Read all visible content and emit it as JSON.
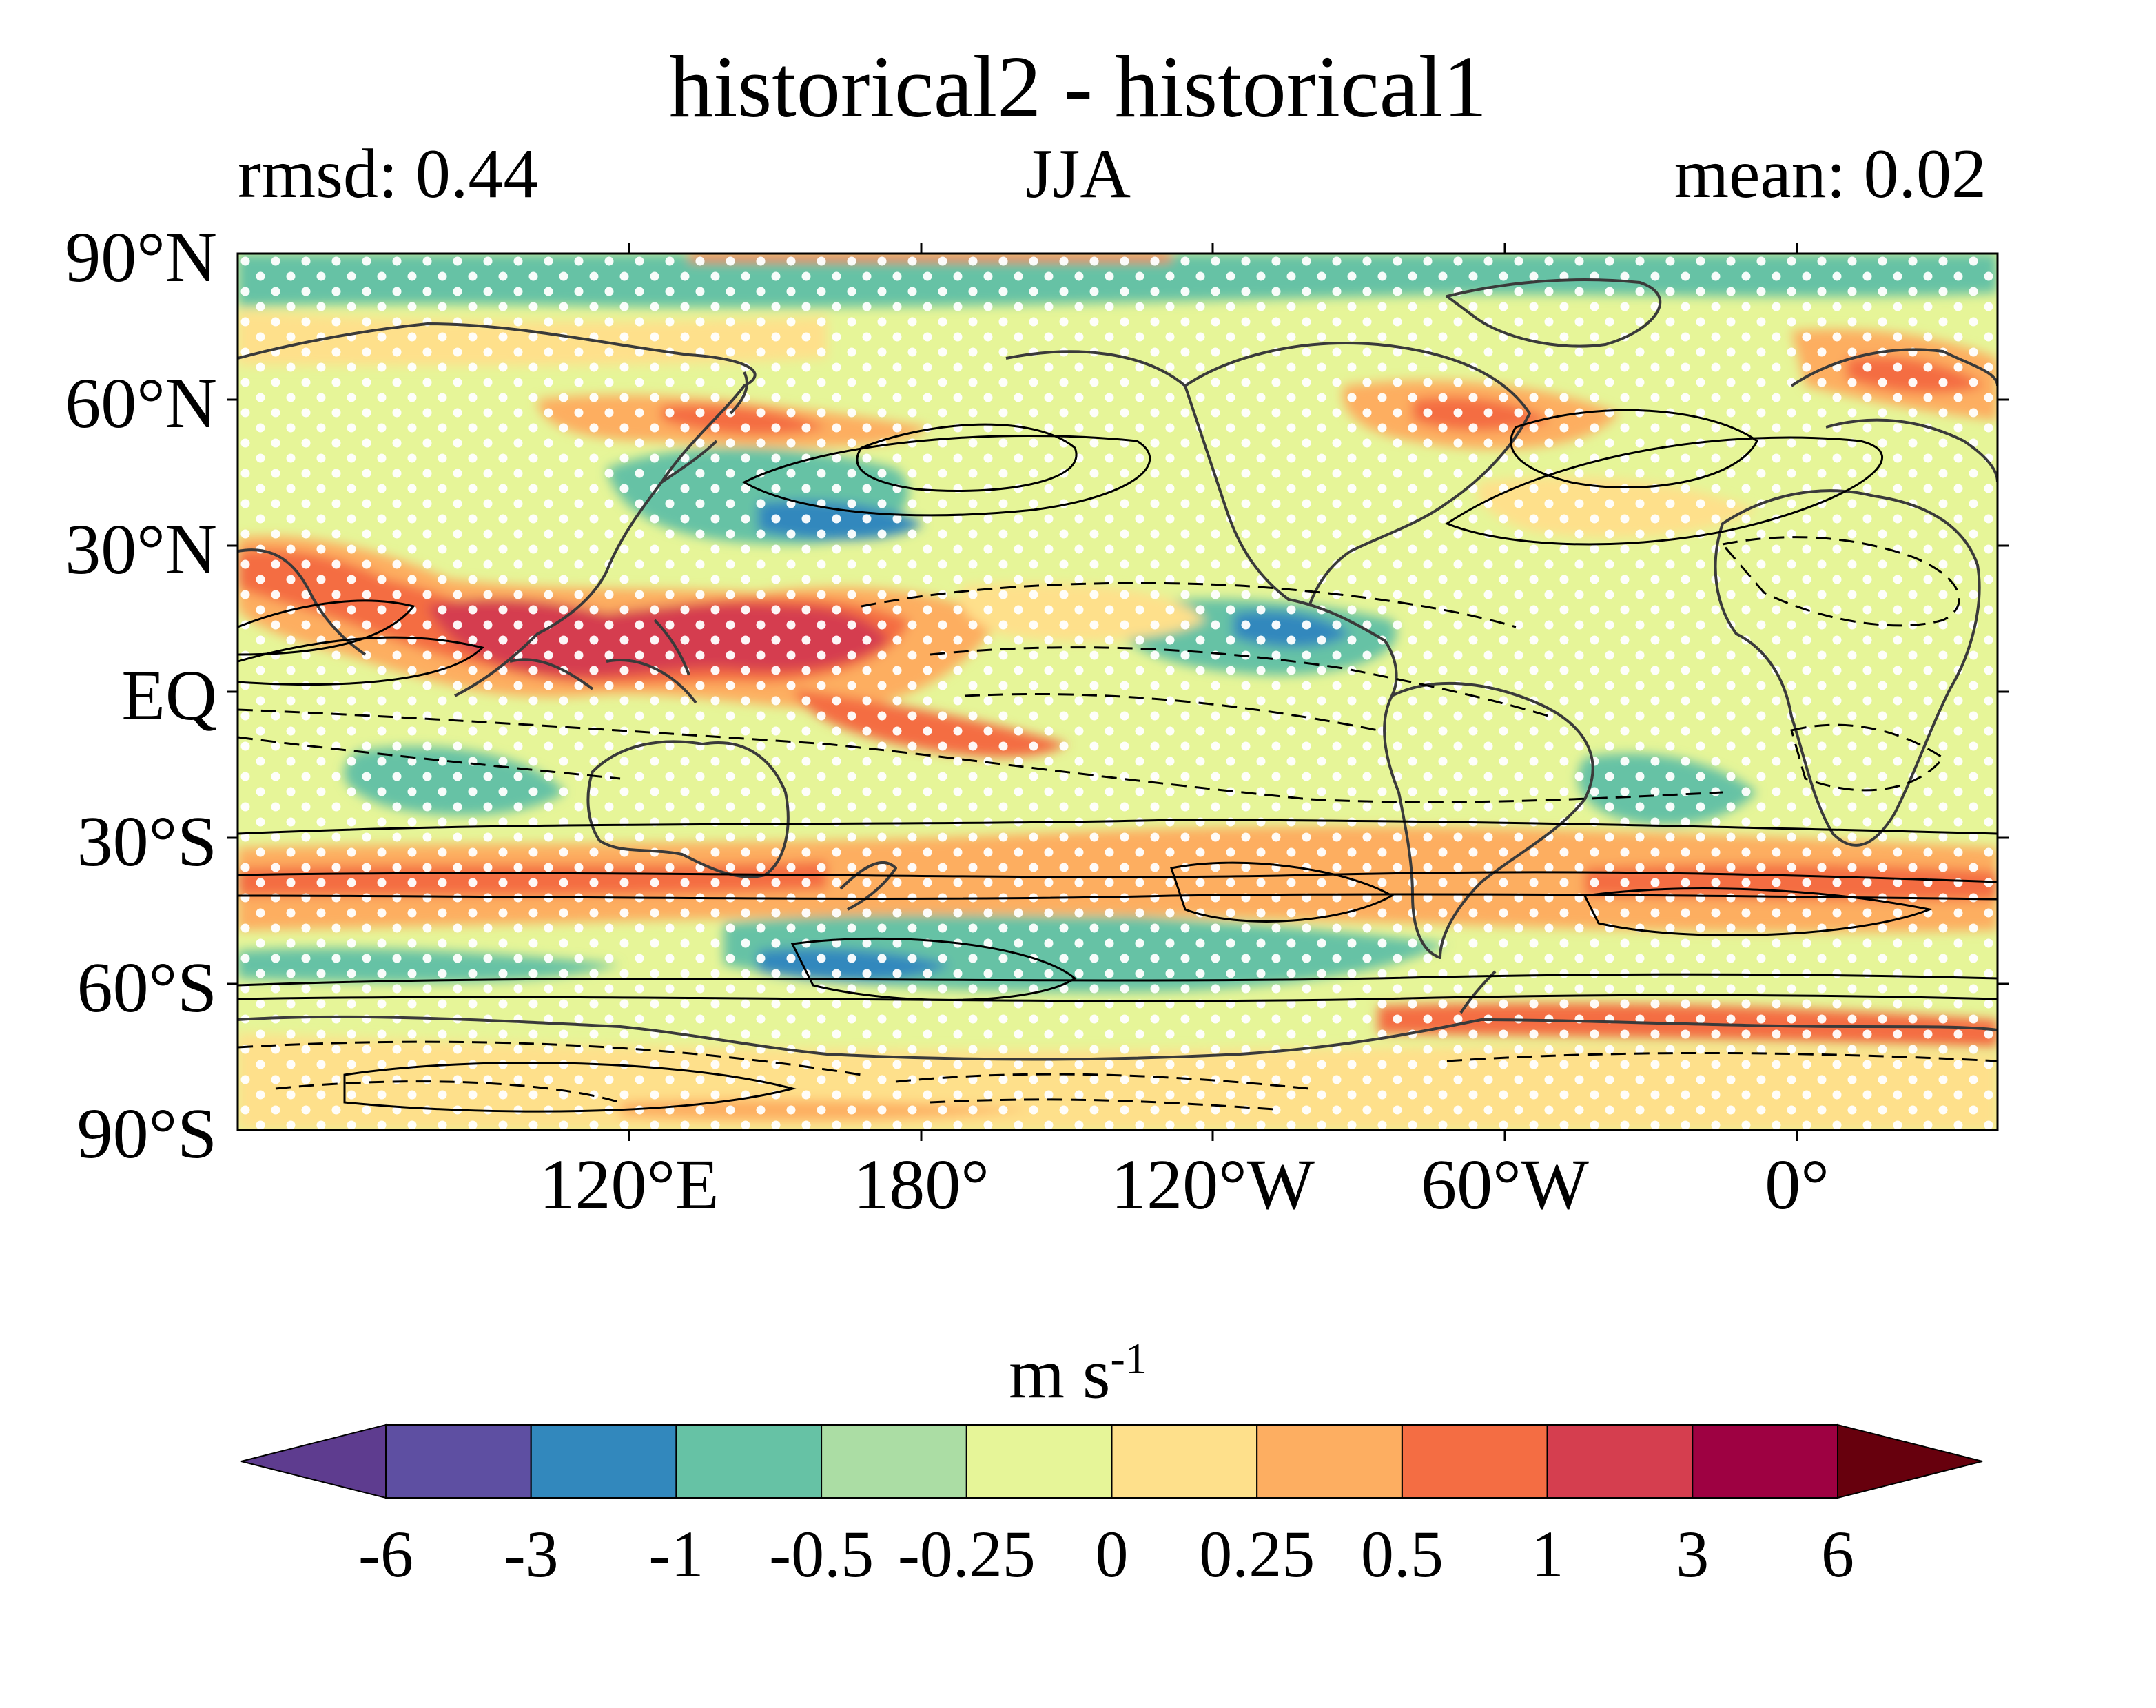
{
  "figure": {
    "title": "historical2 - historical1",
    "left_subtitle": "rmsd: 0.44",
    "center_subtitle": "JJA",
    "right_subtitle": "mean: 0.02"
  },
  "map": {
    "projection": "equirectangular",
    "central_longitude": 150,
    "lat_ticks": [
      "90°N",
      "60°N",
      "30°N",
      "EQ",
      "30°S",
      "60°S",
      "90°S"
    ],
    "lon_ticks": [
      "120°E",
      "180°",
      "120°W",
      "60°W",
      "0°"
    ],
    "stippling": "white dots",
    "contours": "black solid (positive) and dashed (negative) lines"
  },
  "colorbar": {
    "units_main": "m s",
    "units_exp": "-1",
    "levels": [
      "-6",
      "-3",
      "-1",
      "-0.5",
      "-0.25",
      "0",
      "0.25",
      "0.5",
      "1",
      "3",
      "6"
    ],
    "colors": [
      "#5e3c8f",
      "#5e4fa2",
      "#3288bd",
      "#66c2a5",
      "#abdda4",
      "#e6f598",
      "#fee08b",
      "#fdae61",
      "#f46d43",
      "#d53e4f",
      "#9e0142",
      "#67000d"
    ],
    "extend": "both"
  }
}
